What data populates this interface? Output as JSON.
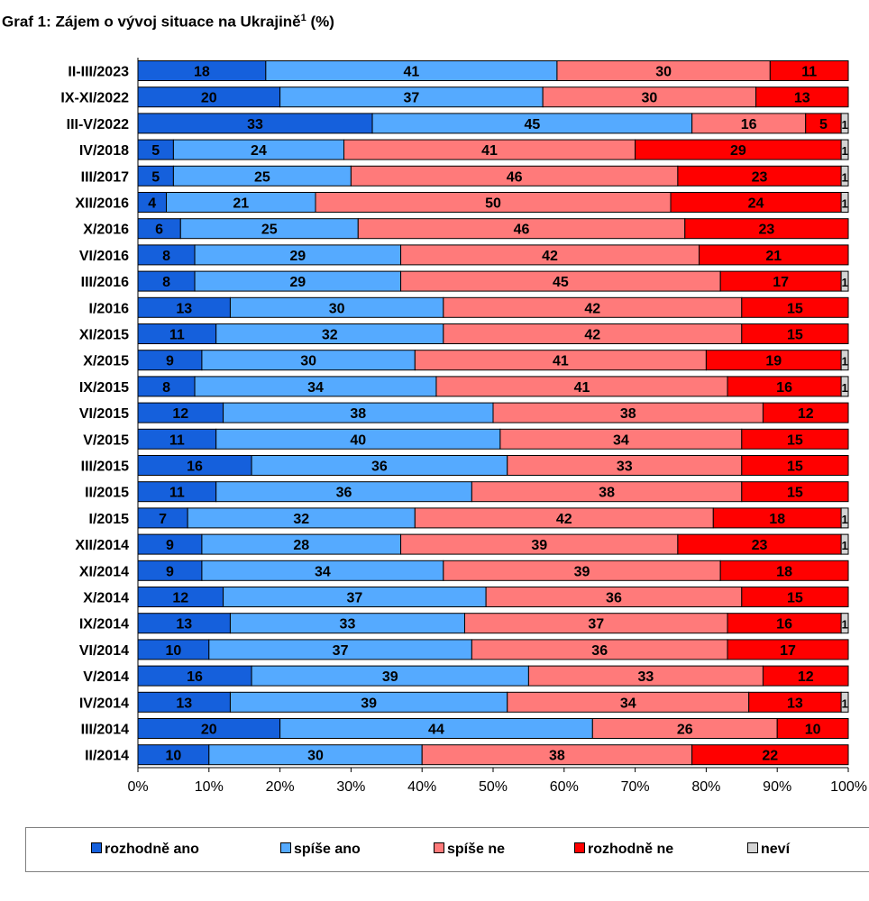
{
  "title": "Graf 1: Zájem o vývoj situace na Ukrajině",
  "title_sup": "1",
  "title_suffix": " (%)",
  "chart_data": {
    "type": "bar",
    "orientation": "horizontal",
    "stacked": "percent",
    "title": "Graf 1: Zájem o vývoj situace na Ukrajině¹ (%)",
    "categories": [
      "II-III/2023",
      "IX-XI/2022",
      "III-V/2022",
      "IV/2018",
      "III/2017",
      "XII/2016",
      "X/2016",
      "VI/2016",
      "III/2016",
      "I/2016",
      "XI/2015",
      "X/2015",
      "IX/2015",
      "VI/2015",
      "V/2015",
      "III/2015",
      "II/2015",
      "I/2015",
      "XII/2014",
      "XI/2014",
      "X/2014",
      "IX/2014",
      "VI/2014",
      "V/2014",
      "IV/2014",
      "III/2014",
      "II/2014"
    ],
    "series": [
      {
        "name": "rozhodně ano",
        "color": "#1560dc",
        "values": [
          18,
          20,
          33,
          5,
          5,
          4,
          6,
          8,
          8,
          13,
          11,
          9,
          8,
          12,
          11,
          16,
          11,
          7,
          9,
          9,
          12,
          13,
          10,
          16,
          13,
          20,
          10
        ]
      },
      {
        "name": "spíše ano",
        "color": "#55aaff",
        "values": [
          41,
          37,
          45,
          24,
          25,
          21,
          25,
          29,
          29,
          30,
          32,
          30,
          34,
          38,
          40,
          36,
          36,
          32,
          28,
          34,
          37,
          33,
          37,
          39,
          39,
          44,
          30
        ]
      },
      {
        "name": "spíše ne",
        "color": "#ff7a7a",
        "values": [
          30,
          30,
          16,
          41,
          46,
          50,
          46,
          42,
          45,
          42,
          42,
          41,
          41,
          38,
          34,
          33,
          38,
          42,
          39,
          39,
          36,
          37,
          36,
          33,
          34,
          26,
          38
        ]
      },
      {
        "name": "rozhodně ne",
        "color": "#ff0000",
        "values": [
          11,
          13,
          5,
          29,
          23,
          24,
          23,
          21,
          17,
          15,
          15,
          19,
          16,
          12,
          15,
          15,
          15,
          18,
          23,
          18,
          15,
          16,
          17,
          12,
          13,
          10,
          22
        ]
      },
      {
        "name": "neví",
        "color": "#d4d4d4",
        "values": [
          0,
          0,
          1,
          1,
          1,
          1,
          0,
          0,
          1,
          0,
          0,
          1,
          1,
          0,
          0,
          0,
          0,
          1,
          1,
          0,
          0,
          1,
          0,
          0,
          1,
          0,
          0
        ]
      }
    ],
    "x_ticks": [
      "0%",
      "10%",
      "20%",
      "30%",
      "40%",
      "50%",
      "60%",
      "70%",
      "80%",
      "90%",
      "100%"
    ],
    "xlim": [
      0,
      100
    ],
    "grid": false,
    "legend_position": "bottom"
  }
}
